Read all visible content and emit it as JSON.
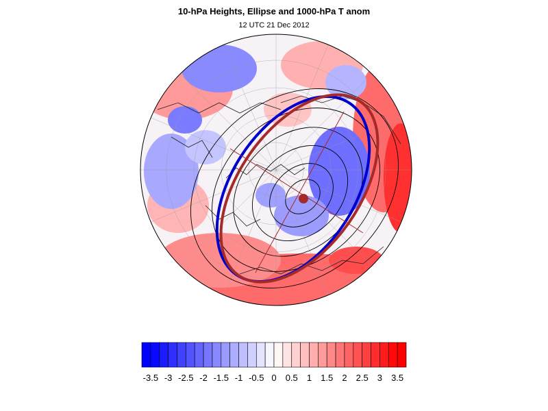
{
  "header": {
    "title": "10-hPa Heights, Ellipse and 1000-hPa T anom",
    "subtitle": "12 UTC 21 Dec 2012"
  },
  "map": {
    "projection": "polar stereographic (northern hemisphere)",
    "fields": [
      "10-hPa heights",
      "ellipse",
      "1000-hPa T anom"
    ]
  },
  "colorbar": {
    "levels": [
      -3.5,
      -3.25,
      -3,
      -2.75,
      -2.5,
      -2.25,
      -2,
      -1.75,
      -1.5,
      -1.25,
      -1,
      -0.75,
      -0.5,
      -0.25,
      0,
      0.25,
      0.5,
      0.75,
      1,
      1.25,
      1.5,
      1.75,
      2,
      2.25,
      2.5,
      2.75,
      3,
      3.25,
      3.5
    ],
    "tick_labels": [
      "-3.5",
      "-3",
      "-2.5",
      "-2",
      "-1.5",
      "-1",
      "-0.5",
      "0",
      "0.5",
      "1",
      "1.5",
      "2",
      "2.5",
      "3",
      "3.5"
    ],
    "negative_color": "#0000ff",
    "positive_color": "#ff0000"
  },
  "colors": {
    "ellipse_red": "#a52a2a",
    "ellipse_blue": "#0000cc",
    "contour": "#000000"
  }
}
